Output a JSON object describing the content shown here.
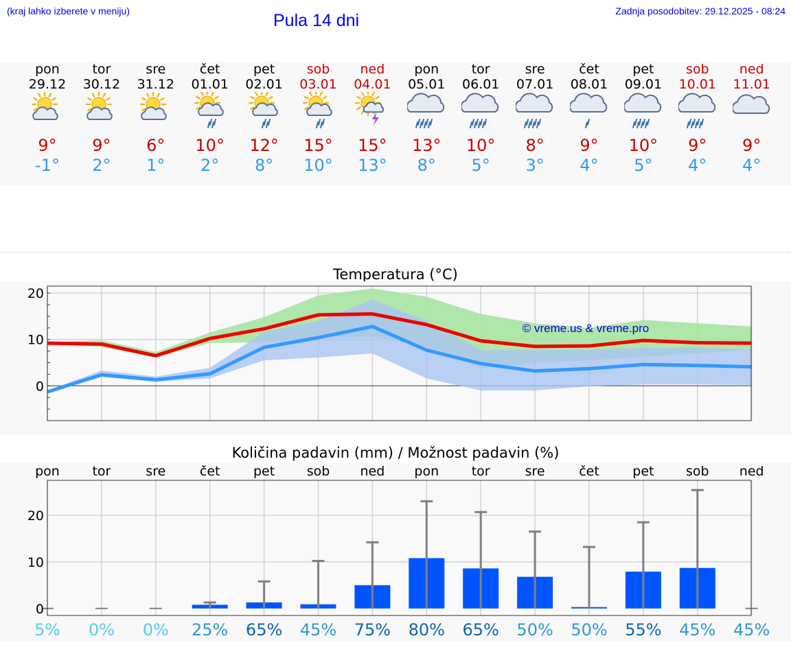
{
  "header": {
    "hint": "(kraj lahko izberete v meniju)",
    "title": "Pula 14 dni",
    "updated_label": "Zadnja posodobitev:",
    "updated_value": "29.12.2025 - 08:24"
  },
  "days": [
    {
      "name": "pon",
      "date": "29.12",
      "weekend": false,
      "icon": "sun-cloud-icon",
      "max": "9°",
      "min": "-1°"
    },
    {
      "name": "tor",
      "date": "30.12",
      "weekend": false,
      "icon": "sun-cloud-icon",
      "max": "9°",
      "min": "2°"
    },
    {
      "name": "sre",
      "date": "31.12",
      "weekend": false,
      "icon": "sun-cloud-icon",
      "max": "6°",
      "min": "1°"
    },
    {
      "name": "čet",
      "date": "01.01",
      "weekend": false,
      "icon": "sun-rain-icon",
      "max": "10°",
      "min": "2°"
    },
    {
      "name": "pet",
      "date": "02.01",
      "weekend": false,
      "icon": "sun-rain-icon",
      "max": "12°",
      "min": "8°"
    },
    {
      "name": "sob",
      "date": "03.01",
      "weekend": true,
      "icon": "sun-rain-icon",
      "max": "15°",
      "min": "10°"
    },
    {
      "name": "ned",
      "date": "04.01",
      "weekend": true,
      "icon": "sun-thunder-icon",
      "max": "15°",
      "min": "13°"
    },
    {
      "name": "pon",
      "date": "05.01",
      "weekend": false,
      "icon": "cloud-heavy-rain-icon",
      "max": "13°",
      "min": "8°"
    },
    {
      "name": "tor",
      "date": "06.01",
      "weekend": false,
      "icon": "cloud-heavy-rain-icon",
      "max": "10°",
      "min": "5°"
    },
    {
      "name": "sre",
      "date": "07.01",
      "weekend": false,
      "icon": "cloud-heavy-rain-icon",
      "max": "8°",
      "min": "3°"
    },
    {
      "name": "čet",
      "date": "08.01",
      "weekend": false,
      "icon": "cloud-rain-icon",
      "max": "9°",
      "min": "4°"
    },
    {
      "name": "pet",
      "date": "09.01",
      "weekend": false,
      "icon": "cloud-heavy-rain-icon",
      "max": "10°",
      "min": "5°"
    },
    {
      "name": "sob",
      "date": "10.01",
      "weekend": true,
      "icon": "cloud-heavy-rain-icon",
      "max": "9°",
      "min": "4°"
    },
    {
      "name": "ned",
      "date": "11.01",
      "weekend": true,
      "icon": "cloud-icon",
      "max": "9°",
      "min": "4°"
    }
  ],
  "colors": {
    "max_line": "#ee0000",
    "min_line": "#3399ff",
    "max_band": "#a6e3a1",
    "min_band": "#aac4f2",
    "bar": "#0055ff",
    "error_bar": "#808080"
  },
  "chart_data": [
    {
      "type": "line",
      "title": "Temperatura (°C)",
      "watermark": "© vreme.us & vreme.pro",
      "ylim": [
        -7.5,
        21.5
      ],
      "yticks": [
        "20",
        "10",
        "0"
      ],
      "grid": true,
      "series": [
        {
          "name": "max",
          "values": [
            9.2,
            9,
            6.5,
            10.2,
            12.3,
            15.3,
            15.5,
            13.2,
            9.7,
            8.5,
            8.6,
            9.8,
            9.3,
            9.2
          ],
          "band_low": [
            9,
            8.4,
            6.1,
            9.2,
            9.4,
            10.4,
            10.5,
            8.5,
            3.8,
            4.9,
            5.5,
            6.3,
            7.0,
            7.8
          ],
          "band_high": [
            9.4,
            9.8,
            7.3,
            11.5,
            14.8,
            19.5,
            21.0,
            19.2,
            15.5,
            13.5,
            12.5,
            14.2,
            13.5,
            12.8
          ]
        },
        {
          "name": "min",
          "values": [
            -1.3,
            2.4,
            1.3,
            2.6,
            8.3,
            10.4,
            12.8,
            7.7,
            4.8,
            3.2,
            3.7,
            4.6,
            4.4,
            4.1
          ],
          "band_low": [
            -1.6,
            1.9,
            0.9,
            1.6,
            5.5,
            6.1,
            7.0,
            1.6,
            -1.0,
            -1.0,
            -0.1,
            0.3,
            0.3,
            0.2
          ],
          "band_high": [
            -1.0,
            3.3,
            2.0,
            3.9,
            11.6,
            14.0,
            18.6,
            14.0,
            7.7,
            7.7,
            7.8,
            8.2,
            8.2,
            7.9
          ]
        }
      ]
    },
    {
      "type": "bar",
      "title": "Količina padavin (mm) / Možnost padavin (%)",
      "categories": [
        "pon",
        "tor",
        "sre",
        "čet",
        "pet",
        "sob",
        "ned",
        "pon",
        "tor",
        "sre",
        "čet",
        "pet",
        "sob",
        "ned"
      ],
      "values": [
        0,
        0,
        0,
        0.8,
        1.3,
        0.9,
        5,
        10.8,
        8.6,
        6.8,
        0.3,
        7.9,
        8.7,
        0
      ],
      "error_high": [
        0,
        0,
        0,
        1.3,
        5.8,
        10.2,
        14.2,
        23.0,
        20.7,
        16.5,
        13.2,
        18.5,
        25.4,
        0
      ],
      "ylim": [
        -1.5,
        27.5
      ],
      "yticks": [
        "20",
        "10",
        "0"
      ],
      "probabilities": [
        "5%",
        "0%",
        "0%",
        "25%",
        "65%",
        "45%",
        "75%",
        "80%",
        "65%",
        "50%",
        "50%",
        "55%",
        "45%",
        "45%"
      ],
      "prob_colors": [
        "#55ccee",
        "#55ccee",
        "#55ccee",
        "#3399cc",
        "#1166aa",
        "#3399cc",
        "#1166aa",
        "#1166aa",
        "#1166aa",
        "#3399cc",
        "#3399cc",
        "#1166aa",
        "#3399cc",
        "#3399cc"
      ]
    }
  ]
}
